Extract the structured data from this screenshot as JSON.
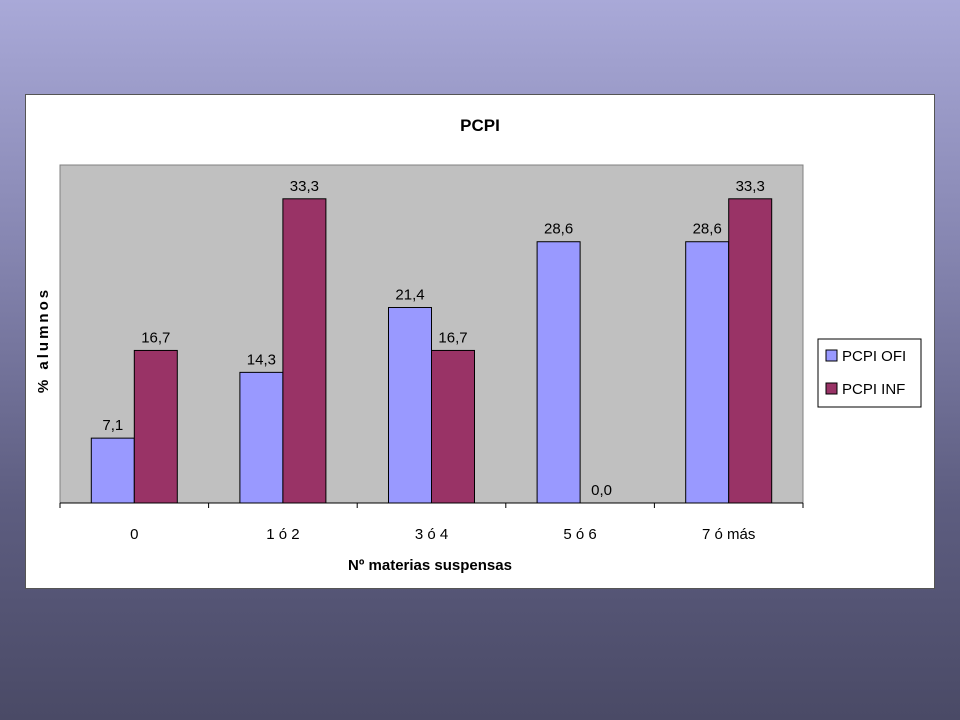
{
  "chart_data": {
    "type": "bar",
    "title": "PCPI",
    "xlabel": "Nº materias suspensas",
    "ylabel": "% alumnos",
    "categories": [
      "0",
      "1 ó 2",
      "3 ó 4",
      "5 ó 6",
      "7 ó más"
    ],
    "series": [
      {
        "name": "PCPI OFI",
        "values": [
          7.1,
          14.3,
          21.4,
          28.6,
          28.6
        ],
        "labels": [
          "7,1",
          "14,3",
          "21,4",
          "28,6",
          "28,6"
        ],
        "color": "#9999ff"
      },
      {
        "name": "PCPI INF",
        "values": [
          16.7,
          33.3,
          16.7,
          0.0,
          33.3
        ],
        "labels": [
          "16,7",
          "33,3",
          "16,7",
          "0,0",
          "33,3"
        ],
        "color": "#993366"
      }
    ],
    "ylim": [
      0,
      37
    ],
    "grid": false,
    "plot_background": "#c0c0c0",
    "legend_position": "right"
  }
}
